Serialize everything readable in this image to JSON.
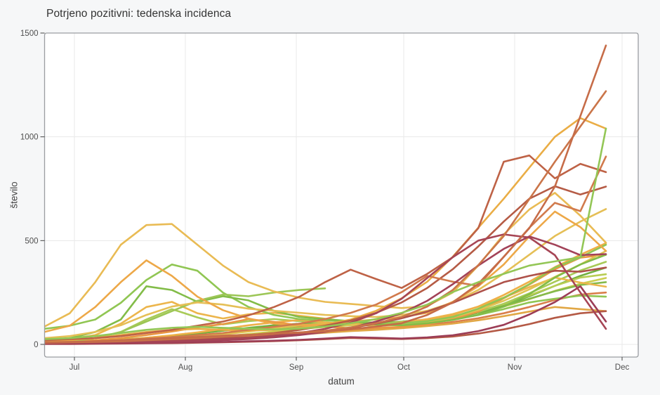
{
  "title": "Potrjeno pozitivni: tedenska incidenca",
  "x_axis": {
    "label": "datum",
    "tick_labels": [
      "Jul",
      "Aug",
      "Sep",
      "Oct",
      "Nov",
      "Dec"
    ]
  },
  "y_axis": {
    "label": "število",
    "tick_labels": [
      "0",
      "500",
      "1000",
      "1500"
    ]
  },
  "colors": {
    "background": "#f6f7f8",
    "plot_background": "#ffffff",
    "plot_border": "#9a9da1",
    "gridline": "#e8e8e8",
    "tick": "#444444",
    "tick_text": "#4f4f4f",
    "title_text": "#333333"
  },
  "chart_data": {
    "type": "line",
    "title": "Potrjeno pozitivni: tedenska incidenca",
    "xlabel": "datum",
    "ylabel": "število",
    "x": [
      "Jun 22",
      "Jun 29",
      "Jul 6",
      "Jul 13",
      "Jul 20",
      "Jul 27",
      "Aug 3",
      "Aug 10",
      "Aug 17",
      "Aug 24",
      "Aug 31",
      "Sep 7",
      "Sep 14",
      "Sep 21",
      "Sep 28",
      "Oct 5",
      "Oct 12",
      "Oct 19",
      "Oct 26",
      "Nov 2",
      "Nov 9",
      "Nov 16",
      "Nov 23"
    ],
    "x_month_ticks": [
      "Jul",
      "Aug",
      "Sep",
      "Oct",
      "Nov",
      "Dec"
    ],
    "y_ticks": [
      0,
      500,
      1000,
      1500
    ],
    "ylim": [
      -61,
      1500
    ],
    "grid": true,
    "legend_position": "none",
    "series": [
      {
        "color": "#c9cc47",
        "values": [
          4,
          5,
          7,
          10,
          14,
          20,
          28,
          38,
          50,
          62,
          74,
          84,
          92,
          98,
          104,
          114,
          130,
          152,
          182,
          218,
          258,
          292,
          320
        ]
      },
      {
        "color": "#7fb743",
        "values": [
          8,
          9,
          12,
          16,
          22,
          30,
          40,
          52,
          64,
          76,
          86,
          94,
          100,
          104,
          110,
          120,
          136,
          158,
          186,
          220,
          256,
          286,
          300
        ]
      },
      {
        "color": "#d87942",
        "values": [
          5,
          6,
          8,
          10,
          14,
          18,
          24,
          30,
          38,
          46,
          54,
          62,
          70,
          76,
          84,
          94,
          108,
          126,
          150,
          180,
          214,
          240,
          250
        ]
      },
      {
        "color": "#8bc34a",
        "values": [
          12,
          14,
          18,
          24,
          32,
          42,
          54,
          66,
          78,
          88,
          96,
          100,
          96,
          90,
          94,
          104,
          120,
          142,
          170,
          202,
          220,
          235,
          230
        ]
      },
      {
        "color": "#e0a33c",
        "values": [
          3,
          4,
          5,
          7,
          10,
          14,
          19,
          25,
          32,
          40,
          48,
          56,
          64,
          70,
          78,
          88,
          100,
          116,
          136,
          158,
          180,
          170,
          160
        ]
      },
      {
        "color": "#6aab35",
        "values": [
          10,
          12,
          16,
          22,
          30,
          40,
          52,
          66,
          80,
          92,
          100,
          104,
          100,
          95,
          98,
          108,
          126,
          152,
          188,
          232,
          282,
          330,
          370
        ]
      },
      {
        "color": "#b5cb4b",
        "values": [
          6,
          8,
          12,
          16,
          22,
          30,
          40,
          52,
          66,
          80,
          92,
          100,
          104,
          98,
          106,
          116,
          134,
          160,
          194,
          236,
          282,
          322,
          338
        ]
      },
      {
        "color": "#a4c84f",
        "values": [
          15,
          18,
          30,
          60,
          120,
          170,
          130,
          96,
          112,
          122,
          112,
          104,
          96,
          92,
          96,
          106,
          126,
          156,
          196,
          246,
          302,
          356,
          398
        ]
      },
      {
        "color": "#ecb243",
        "values": [
          20,
          26,
          45,
          100,
          180,
          205,
          150,
          125,
          145,
          152,
          138,
          124,
          108,
          100,
          106,
          122,
          146,
          182,
          226,
          276,
          322,
          298,
          278
        ]
      },
      {
        "color": "#eeab3e",
        "values": [
          8,
          10,
          14,
          22,
          32,
          44,
          58,
          74,
          92,
          106,
          118,
          106,
          98,
          94,
          102,
          116,
          142,
          182,
          238,
          302,
          372,
          432,
          488
        ]
      },
      {
        "color": "#e89138",
        "values": [
          12,
          15,
          20,
          30,
          45,
          62,
          82,
          98,
          122,
          108,
          92,
          86,
          78,
          80,
          84,
          96,
          122,
          158,
          222,
          288,
          362,
          418,
          432
        ]
      },
      {
        "color": "#dfc04a",
        "values": [
          5,
          6,
          8,
          12,
          18,
          26,
          36,
          48,
          62,
          78,
          92,
          100,
          95,
          90,
          95,
          108,
          130,
          165,
          210,
          265,
          325,
          385,
          450
        ]
      },
      {
        "color": "#8bc34a",
        "values": [
          75,
          90,
          120,
          200,
          310,
          385,
          355,
          250,
          180,
          142,
          122,
          115,
          110,
          105,
          102,
          112,
          132,
          172,
          225,
          290,
          370,
          420,
          480
        ]
      },
      {
        "color": "#7cb93f",
        "values": [
          20,
          30,
          60,
          120,
          280,
          262,
          205,
          232,
          212,
          162,
          132,
          122,
          112,
          96,
          92,
          102,
          118,
          142,
          182,
          242,
          322,
          385,
          432
        ]
      },
      {
        "color": "#97c44e",
        "values": [
          10,
          15,
          30,
          60,
          110,
          160,
          210,
          240,
          232,
          250,
          262,
          270,
          null,
          null,
          null,
          null,
          null,
          null,
          null,
          null,
          null,
          null,
          null
        ]
      },
      {
        "color": "#e4bc4e",
        "values": [
          30,
          40,
          60,
          92,
          142,
          182,
          202,
          192,
          172,
          162,
          152,
          142,
          136,
          132,
          142,
          162,
          202,
          262,
          342,
          432,
          522,
          592,
          652
        ]
      },
      {
        "color": "#e8b84b",
        "values": [
          85,
          150,
          300,
          480,
          575,
          580,
          480,
          380,
          300,
          255,
          225,
          205,
          195,
          185,
          175,
          185,
          250,
          380,
          530,
          650,
          730,
          620,
          490
        ]
      },
      {
        "color": "#eda43f",
        "values": [
          60,
          90,
          180,
          300,
          405,
          330,
          230,
          165,
          125,
          100,
          92,
          96,
          110,
          120,
          132,
          152,
          205,
          280,
          385,
          520,
          640,
          565,
          450
        ]
      },
      {
        "color": "#e9a93c",
        "values": [
          15,
          20,
          30,
          45,
          60,
          70,
          75,
          70,
          66,
          70,
          80,
          96,
          120,
          162,
          222,
          302,
          422,
          562,
          702,
          852,
          1000,
          1090,
          1040
        ]
      },
      {
        "color": "#b2533c",
        "values": [
          5,
          8,
          10,
          12,
          15,
          20,
          28,
          35,
          45,
          55,
          70,
          90,
          115,
          152,
          202,
          272,
          362,
          472,
          592,
          702,
          762,
          722,
          760
        ]
      },
      {
        "color": "#cf7343",
        "values": [
          10,
          12,
          15,
          20,
          28,
          35,
          45,
          55,
          70,
          85,
          100,
          122,
          152,
          192,
          252,
          330,
          302,
          282,
          422,
          562,
          682,
          642,
          905
        ]
      },
      {
        "color": "#bb5a3d",
        "values": [
          20,
          25,
          30,
          40,
          55,
          70,
          90,
          110,
          140,
          180,
          230,
          300,
          360,
          315,
          272,
          340,
          420,
          560,
          880,
          910,
          800,
          870,
          830
        ]
      },
      {
        "color": "#aa4840",
        "values": [
          6,
          8,
          10,
          12,
          14,
          18,
          22,
          28,
          34,
          42,
          52,
          64,
          80,
          100,
          126,
          158,
          200,
          250,
          300,
          330,
          355,
          350,
          370
        ]
      },
      {
        "color": "#b0513c",
        "values": [
          2,
          2,
          3,
          4,
          5,
          6,
          8,
          10,
          13,
          16,
          20,
          25,
          31,
          28,
          26,
          30,
          38,
          52,
          72,
          98,
          128,
          150,
          160
        ]
      },
      {
        "color": "#97334e",
        "values": [
          3,
          3,
          4,
          5,
          6,
          8,
          10,
          12,
          15,
          18,
          22,
          28,
          35,
          32,
          28,
          34,
          44,
          64,
          94,
          144,
          204,
          280,
          110
        ]
      },
      {
        "color": "#9e3850",
        "values": [
          4,
          5,
          6,
          8,
          10,
          12,
          15,
          20,
          26,
          34,
          45,
          60,
          80,
          110,
          150,
          210,
          290,
          380,
          460,
          520,
          480,
          430,
          435
        ]
      },
      {
        "color": "#a23c4c",
        "values": [
          5,
          6,
          8,
          10,
          12,
          15,
          20,
          25,
          30,
          40,
          55,
          75,
          105,
          150,
          220,
          320,
          420,
          500,
          530,
          515,
          430,
          250,
          75
        ]
      },
      {
        "color": "#c86e40",
        "values": [
          8,
          10,
          12,
          15,
          20,
          25,
          30,
          38,
          45,
          52,
          58,
          66,
          82,
          102,
          132,
          182,
          262,
          382,
          522,
          700,
          880,
          1050,
          1220
        ]
      },
      {
        "color": "#c3653f",
        "values": [
          10,
          12,
          15,
          20,
          25,
          30,
          36,
          42,
          46,
          52,
          56,
          62,
          72,
          86,
          102,
          142,
          202,
          292,
          422,
          560,
          760,
          1100,
          1440
        ]
      },
      {
        "color": "#8ec44d",
        "values": [
          25,
          30,
          40,
          55,
          70,
          80,
          85,
          80,
          76,
          72,
          76,
          86,
          102,
          122,
          152,
          192,
          252,
          300,
          340,
          380,
          400,
          420,
          1040
        ]
      }
    ]
  }
}
